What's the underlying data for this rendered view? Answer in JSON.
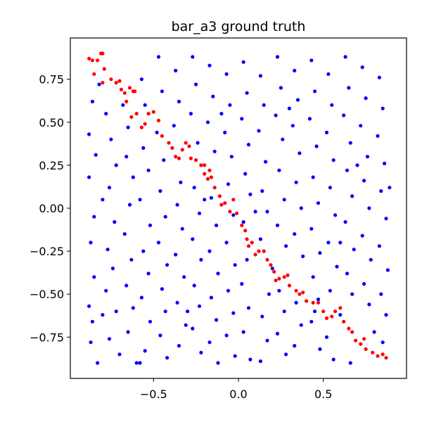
{
  "chart_data": {
    "type": "scatter",
    "title": "bar_a3 ground truth",
    "xlabel": "",
    "ylabel": "",
    "xlim": [
      -0.99,
      0.99
    ],
    "ylim": [
      -0.99,
      0.99
    ],
    "xticks": [
      -0.5,
      0.0,
      0.5
    ],
    "xtick_labels": [
      "−0.5",
      "0.0",
      "0.5"
    ],
    "yticks": [
      -0.75,
      -0.5,
      -0.25,
      0.0,
      0.25,
      0.5,
      0.75
    ],
    "ytick_labels": [
      "−0.75",
      "−0.50",
      "−0.25",
      "0.00",
      "0.25",
      "0.50",
      "0.75"
    ],
    "grid": false,
    "legend": "none",
    "series": [
      {
        "color": "#0000ff",
        "points": [
          [
            -0.88,
            0.43
          ],
          [
            -0.86,
            0.62
          ],
          [
            -0.82,
            0.72
          ],
          [
            -0.84,
            0.31
          ],
          [
            -0.88,
            0.18
          ],
          [
            -0.85,
            -0.05
          ],
          [
            -0.87,
            -0.2
          ],
          [
            -0.85,
            -0.4
          ],
          [
            -0.88,
            -0.57
          ],
          [
            -0.86,
            -0.66
          ],
          [
            -0.87,
            -0.78
          ],
          [
            -0.83,
            -0.9
          ],
          [
            -0.78,
            0.55
          ],
          [
            -0.75,
            0.4
          ],
          [
            -0.72,
            0.25
          ],
          [
            -0.76,
            0.12
          ],
          [
            -0.73,
            -0.08
          ],
          [
            -0.77,
            -0.24
          ],
          [
            -0.74,
            -0.35
          ],
          [
            -0.78,
            -0.48
          ],
          [
            -0.72,
            -0.6
          ],
          [
            -0.76,
            -0.76
          ],
          [
            -0.7,
            -0.85
          ],
          [
            -0.68,
            0.6
          ],
          [
            -0.65,
            0.47
          ],
          [
            -0.66,
            0.3
          ],
          [
            -0.62,
            0.18
          ],
          [
            -0.64,
            0.02
          ],
          [
            -0.67,
            -0.15
          ],
          [
            -0.63,
            -0.3
          ],
          [
            -0.66,
            -0.45
          ],
          [
            -0.62,
            -0.58
          ],
          [
            -0.65,
            -0.72
          ],
          [
            -0.6,
            -0.9
          ],
          [
            -0.57,
            0.75
          ],
          [
            -0.55,
            0.6
          ],
          [
            -0.56,
            0.35
          ],
          [
            -0.53,
            0.22
          ],
          [
            -0.58,
            0.05
          ],
          [
            -0.52,
            -0.1
          ],
          [
            -0.56,
            -0.25
          ],
          [
            -0.53,
            -0.38
          ],
          [
            -0.57,
            -0.52
          ],
          [
            -0.52,
            -0.66
          ],
          [
            -0.55,
            -0.83
          ],
          [
            -0.47,
            0.88
          ],
          [
            -0.45,
            0.68
          ],
          [
            -0.48,
            0.44
          ],
          [
            -0.44,
            0.28
          ],
          [
            -0.46,
            0.1
          ],
          [
            -0.43,
            -0.05
          ],
          [
            -0.47,
            -0.2
          ],
          [
            -0.42,
            -0.33
          ],
          [
            -0.45,
            -0.47
          ],
          [
            -0.43,
            -0.6
          ],
          [
            -0.46,
            -0.74
          ],
          [
            -0.42,
            -0.87
          ],
          [
            -0.37,
            0.8
          ],
          [
            -0.35,
            0.62
          ],
          [
            -0.38,
            0.48
          ],
          [
            -0.34,
            0.15
          ],
          [
            -0.36,
            0.02
          ],
          [
            -0.33,
            -0.12
          ],
          [
            -0.37,
            -0.27
          ],
          [
            -0.32,
            -0.4
          ],
          [
            -0.36,
            -0.55
          ],
          [
            -0.31,
            -0.68
          ],
          [
            -0.35,
            -0.8
          ],
          [
            -0.27,
            0.88
          ],
          [
            -0.25,
            0.72
          ],
          [
            -0.28,
            0.55
          ],
          [
            -0.24,
            0.38
          ],
          [
            -0.26,
            0.12
          ],
          [
            -0.23,
            -0.03
          ],
          [
            -0.27,
            -0.18
          ],
          [
            -0.22,
            -0.3
          ],
          [
            -0.26,
            -0.45
          ],
          [
            -0.23,
            -0.57
          ],
          [
            -0.27,
            -0.7
          ],
          [
            -0.22,
            -0.84
          ],
          [
            -0.17,
            0.83
          ],
          [
            -0.15,
            0.65
          ],
          [
            -0.18,
            0.5
          ],
          [
            -0.14,
            0.33
          ],
          [
            -0.16,
            0.06
          ],
          [
            -0.13,
            -0.1
          ],
          [
            -0.17,
            -0.25
          ],
          [
            -0.12,
            -0.38
          ],
          [
            -0.16,
            -0.52
          ],
          [
            -0.13,
            -0.65
          ],
          [
            -0.17,
            -0.78
          ],
          [
            -0.12,
            -0.9
          ],
          [
            -0.07,
            0.78
          ],
          [
            -0.05,
            0.6
          ],
          [
            -0.08,
            0.44
          ],
          [
            -0.04,
            0.3
          ],
          [
            -0.06,
            0.14
          ],
          [
            -0.03,
            -0.04
          ],
          [
            -0.07,
            -0.2
          ],
          [
            -0.02,
            -0.33
          ],
          [
            -0.06,
            -0.48
          ],
          [
            -0.03,
            -0.61
          ],
          [
            -0.07,
            -0.74
          ],
          [
            -0.02,
            -0.86
          ],
          [
            0.03,
            0.85
          ],
          [
            0.05,
            0.67
          ],
          [
            0.02,
            0.52
          ],
          [
            0.06,
            0.37
          ],
          [
            0.04,
            0.2
          ],
          [
            0.07,
            0.08
          ],
          [
            0.03,
            -0.08
          ],
          [
            0.05,
            -0.3
          ],
          [
            0.02,
            -0.44
          ],
          [
            0.06,
            -0.58
          ],
          [
            0.03,
            -0.72
          ],
          [
            0.07,
            -0.88
          ],
          [
            0.13,
            0.77
          ],
          [
            0.15,
            0.6
          ],
          [
            0.12,
            0.45
          ],
          [
            0.16,
            0.27
          ],
          [
            0.14,
            0.1
          ],
          [
            0.17,
            -0.02
          ],
          [
            0.13,
            -0.18
          ],
          [
            0.18,
            -0.5
          ],
          [
            0.14,
            -0.63
          ],
          [
            0.17,
            -0.77
          ],
          [
            0.13,
            -0.89
          ],
          [
            0.23,
            0.88
          ],
          [
            0.25,
            0.7
          ],
          [
            0.22,
            0.54
          ],
          [
            0.26,
            0.4
          ],
          [
            0.24,
            0.22
          ],
          [
            0.27,
            0.05
          ],
          [
            0.23,
            -0.1
          ],
          [
            0.28,
            -0.22
          ],
          [
            0.24,
            -0.48
          ],
          [
            0.27,
            -0.6
          ],
          [
            0.23,
            -0.73
          ],
          [
            0.28,
            -0.85
          ],
          [
            0.33,
            0.8
          ],
          [
            0.35,
            0.63
          ],
          [
            0.32,
            0.48
          ],
          [
            0.36,
            0.32
          ],
          [
            0.34,
            0.15
          ],
          [
            0.37,
            0.0
          ],
          [
            0.33,
            -0.15
          ],
          [
            0.38,
            -0.28
          ],
          [
            0.34,
            -0.55
          ],
          [
            0.37,
            -0.68
          ],
          [
            0.33,
            -0.8
          ],
          [
            0.43,
            0.86
          ],
          [
            0.45,
            0.68
          ],
          [
            0.42,
            0.52
          ],
          [
            0.46,
            0.36
          ],
          [
            0.44,
            0.18
          ],
          [
            0.47,
            0.03
          ],
          [
            0.43,
            -0.12
          ],
          [
            0.48,
            -0.26
          ],
          [
            0.44,
            -0.4
          ],
          [
            0.47,
            -0.53
          ],
          [
            0.43,
            -0.66
          ],
          [
            0.48,
            -0.82
          ],
          [
            0.53,
            0.78
          ],
          [
            0.55,
            0.6
          ],
          [
            0.52,
            0.44
          ],
          [
            0.56,
            0.28
          ],
          [
            0.54,
            0.12
          ],
          [
            0.57,
            -0.04
          ],
          [
            0.53,
            -0.2
          ],
          [
            0.58,
            -0.34
          ],
          [
            0.54,
            -0.48
          ],
          [
            0.52,
            -0.75
          ],
          [
            0.56,
            -0.88
          ],
          [
            0.63,
            0.88
          ],
          [
            0.65,
            0.7
          ],
          [
            0.62,
            0.54
          ],
          [
            0.66,
            0.38
          ],
          [
            0.64,
            0.22
          ],
          [
            0.67,
            0.07
          ],
          [
            0.63,
            -0.08
          ],
          [
            0.68,
            -0.24
          ],
          [
            0.64,
            -0.38
          ],
          [
            0.67,
            -0.5
          ],
          [
            0.6,
            -0.62
          ],
          [
            0.66,
            -0.9
          ],
          [
            0.73,
            0.82
          ],
          [
            0.75,
            0.64
          ],
          [
            0.72,
            0.48
          ],
          [
            0.76,
            0.3
          ],
          [
            0.74,
            0.16
          ],
          [
            0.77,
            0.0
          ],
          [
            0.73,
            -0.16
          ],
          [
            0.78,
            -0.3
          ],
          [
            0.74,
            -0.44
          ],
          [
            0.77,
            -0.56
          ],
          [
            0.8,
            -0.72
          ],
          [
            0.83,
            0.76
          ],
          [
            0.85,
            0.58
          ],
          [
            0.82,
            0.42
          ],
          [
            0.86,
            0.26
          ],
          [
            0.84,
            0.1
          ],
          [
            0.87,
            -0.06
          ],
          [
            0.83,
            -0.22
          ],
          [
            0.88,
            -0.36
          ],
          [
            0.84,
            -0.5
          ],
          [
            0.87,
            -0.62
          ],
          [
            0.85,
            -0.78
          ],
          [
            0.89,
            0.12
          ],
          [
            -0.8,
            0.05
          ],
          [
            -0.8,
            -0.62
          ],
          [
            -0.58,
            -0.9
          ],
          [
            -0.2,
            0.05
          ],
          [
            0.1,
            -0.02
          ],
          [
            0.3,
            0.58
          ],
          [
            0.6,
            -0.2
          ],
          [
            0.7,
            0.25
          ],
          [
            -0.3,
            -0.6
          ],
          [
            0.2,
            -0.35
          ],
          [
            -0.1,
            0.55
          ],
          [
            0.45,
            -0.6
          ]
        ]
      },
      {
        "color": "#ff0000",
        "points": [
          [
            -0.88,
            0.87
          ],
          [
            -0.86,
            0.86
          ],
          [
            -0.85,
            0.78
          ],
          [
            -0.83,
            0.86
          ],
          [
            -0.81,
            0.9
          ],
          [
            -0.8,
            0.9
          ],
          [
            -0.79,
            0.81
          ],
          [
            -0.75,
            0.75
          ],
          [
            -0.72,
            0.73
          ],
          [
            -0.7,
            0.74
          ],
          [
            -0.69,
            0.69
          ],
          [
            -0.67,
            0.67
          ],
          [
            -0.66,
            0.62
          ],
          [
            -0.64,
            0.7
          ],
          [
            -0.62,
            0.68
          ],
          [
            -0.61,
            0.68
          ],
          [
            -0.63,
            0.53
          ],
          [
            -0.6,
            0.55
          ],
          [
            -0.57,
            0.47
          ],
          [
            -0.55,
            0.49
          ],
          [
            -0.53,
            0.55
          ],
          [
            -0.5,
            0.56
          ],
          [
            -0.47,
            0.51
          ],
          [
            -0.45,
            0.42
          ],
          [
            -0.41,
            0.38
          ],
          [
            -0.39,
            0.35
          ],
          [
            -0.37,
            0.3
          ],
          [
            -0.35,
            0.29
          ],
          [
            -0.33,
            0.34
          ],
          [
            -0.31,
            0.38
          ],
          [
            -0.29,
            0.36
          ],
          [
            -0.28,
            0.29
          ],
          [
            -0.25,
            0.28
          ],
          [
            -0.22,
            0.25
          ],
          [
            -0.2,
            0.2
          ],
          [
            -0.18,
            0.17
          ],
          [
            -0.17,
            0.22
          ],
          [
            -0.16,
            0.18
          ],
          [
            -0.14,
            0.12
          ],
          [
            -0.11,
            0.07
          ],
          [
            -0.1,
            0.02
          ],
          [
            -0.08,
            0.03
          ],
          [
            -0.05,
            -0.02
          ],
          [
            -0.03,
            0.05
          ],
          [
            -0.01,
            -0.03
          ],
          [
            0.02,
            -0.1
          ],
          [
            0.04,
            -0.13
          ],
          [
            0.05,
            -0.18
          ],
          [
            0.06,
            -0.22
          ],
          [
            0.08,
            -0.2
          ],
          [
            0.1,
            -0.27
          ],
          [
            0.12,
            -0.25
          ],
          [
            0.15,
            -0.25
          ],
          [
            0.17,
            -0.3
          ],
          [
            0.19,
            -0.33
          ],
          [
            0.21,
            -0.37
          ],
          [
            0.22,
            -0.42
          ],
          [
            0.24,
            -0.41
          ],
          [
            0.27,
            -0.4
          ],
          [
            0.29,
            -0.39
          ],
          [
            0.3,
            -0.45
          ],
          [
            0.34,
            -0.48
          ],
          [
            0.36,
            -0.5
          ],
          [
            0.38,
            -0.49
          ],
          [
            0.4,
            -0.54
          ],
          [
            0.44,
            -0.55
          ],
          [
            0.47,
            -0.55
          ],
          [
            0.5,
            -0.6
          ],
          [
            0.52,
            -0.64
          ],
          [
            0.55,
            -0.63
          ],
          [
            0.57,
            -0.6
          ],
          [
            0.6,
            -0.58
          ],
          [
            0.62,
            -0.66
          ],
          [
            0.65,
            -0.7
          ],
          [
            0.67,
            -0.72
          ],
          [
            0.69,
            -0.77
          ],
          [
            0.72,
            -0.79
          ],
          [
            0.74,
            -0.76
          ],
          [
            0.75,
            -0.82
          ],
          [
            0.79,
            -0.84
          ],
          [
            0.82,
            -0.86
          ],
          [
            0.85,
            -0.85
          ],
          [
            0.87,
            -0.87
          ],
          [
            -0.8,
            0.73
          ],
          [
            -0.2,
            0.25
          ]
        ]
      }
    ]
  }
}
